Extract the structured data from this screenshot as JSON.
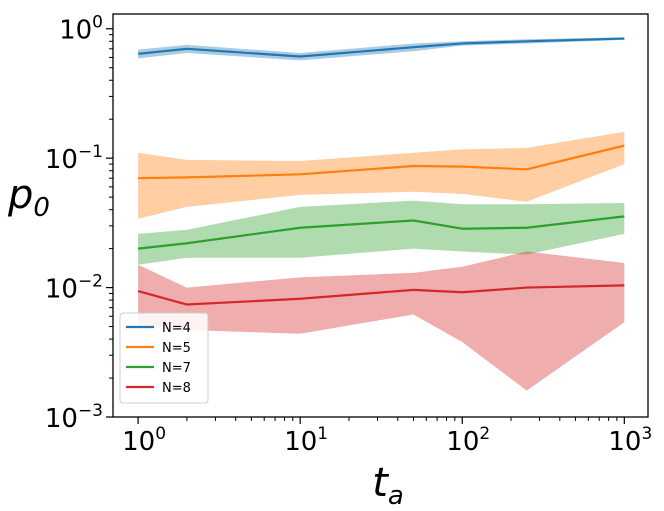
{
  "chart_data": {
    "type": "line",
    "title": "",
    "xlabel": "t_a",
    "xlabel_main": "t",
    "xlabel_sub": "a",
    "ylabel": "p_0",
    "ylabel_main": "p",
    "ylabel_sub": "0",
    "xscale": "log",
    "yscale": "log",
    "xlim": [
      0.7,
      1400
    ],
    "ylim": [
      0.001,
      1.3
    ],
    "x": [
      1,
      2,
      10,
      50,
      100,
      250,
      1000
    ],
    "xticks": [
      {
        "base": "10",
        "exp": "0"
      },
      {
        "base": "10",
        "exp": "1"
      },
      {
        "base": "10",
        "exp": "2"
      },
      {
        "base": "10",
        "exp": "3"
      }
    ],
    "yticks": [
      {
        "base": "10",
        "exp": "0"
      },
      {
        "base": "10",
        "exp": "−1"
      },
      {
        "base": "10",
        "exp": "−2"
      },
      {
        "base": "10",
        "exp": "−3"
      }
    ],
    "legend_position": "lower-left",
    "series": [
      {
        "name": "N=4",
        "color": "#1f77b4",
        "values": [
          0.64,
          0.7,
          0.61,
          0.72,
          0.77,
          0.8,
          0.84
        ],
        "lower": [
          0.59,
          0.65,
          0.57,
          0.67,
          0.74,
          0.77,
          0.82
        ],
        "upper": [
          0.69,
          0.75,
          0.65,
          0.77,
          0.8,
          0.83,
          0.86
        ]
      },
      {
        "name": "N=5",
        "color": "#ff7f0e",
        "values": [
          0.07,
          0.071,
          0.075,
          0.087,
          0.086,
          0.082,
          0.125
        ],
        "lower": [
          0.034,
          0.042,
          0.052,
          0.055,
          0.053,
          0.046,
          0.09
        ],
        "upper": [
          0.11,
          0.097,
          0.095,
          0.11,
          0.117,
          0.12,
          0.16
        ]
      },
      {
        "name": "N=7",
        "color": "#2ca02c",
        "values": [
          0.02,
          0.022,
          0.029,
          0.033,
          0.0285,
          0.029,
          0.0355
        ],
        "lower": [
          0.015,
          0.017,
          0.017,
          0.02,
          0.019,
          0.018,
          0.026
        ],
        "upper": [
          0.026,
          0.028,
          0.042,
          0.047,
          0.044,
          0.044,
          0.045
        ]
      },
      {
        "name": "N=8",
        "color": "#d62728",
        "values": [
          0.0094,
          0.0074,
          0.0082,
          0.0096,
          0.0092,
          0.01,
          0.0104
        ],
        "lower": [
          0.0052,
          0.0047,
          0.0044,
          0.0062,
          0.0038,
          0.0016,
          0.0054
        ],
        "upper": [
          0.015,
          0.01,
          0.012,
          0.013,
          0.0145,
          0.019,
          0.0155
        ]
      }
    ]
  }
}
